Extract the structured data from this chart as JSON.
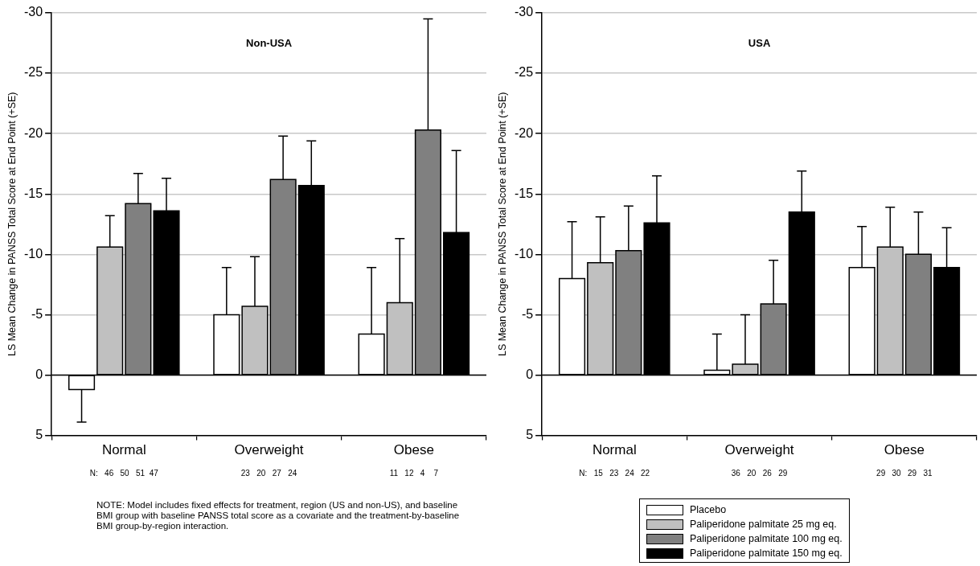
{
  "chart_data": [
    {
      "type": "bar",
      "title": "Non-USA",
      "ylabel": "LS Mean Change in PANSS Total Score at End Point (+SE)",
      "categories": [
        "Normal",
        "Overweight",
        "Obese"
      ],
      "ylim": [
        5,
        -30
      ],
      "yticks": [
        5,
        0,
        -5,
        -10,
        -15,
        -20,
        -25,
        -30
      ],
      "grid": "y",
      "legend": false,
      "series": [
        {
          "color": "#ffffff",
          "values": [
            1.2,
            -5.0,
            -3.4
          ],
          "errors": [
            [
              1.2,
              3.9
            ],
            [
              -8.9,
              -5.0
            ],
            [
              -8.9,
              -3.4
            ]
          ]
        },
        {
          "color": "#c0c0c0",
          "values": [
            -10.6,
            -5.7,
            -6.0
          ],
          "errors": [
            [
              -13.2,
              -10.6
            ],
            [
              -9.8,
              -5.7
            ],
            [
              -11.3,
              -6.0
            ]
          ]
        },
        {
          "color": "#808080",
          "values": [
            -14.2,
            -16.2,
            -20.3
          ],
          "errors": [
            [
              -16.7,
              -14.2
            ],
            [
              -19.8,
              -16.2
            ],
            [
              -29.5,
              -20.3
            ]
          ]
        },
        {
          "color": "#000000",
          "values": [
            -13.6,
            -15.7,
            -11.8
          ],
          "errors": [
            [
              -16.3,
              -13.6
            ],
            [
              -19.4,
              -15.7
            ],
            [
              -18.6,
              -11.8
            ]
          ]
        }
      ],
      "annotations": [
        "N:   46   50   51  47",
        "23   20   27   24",
        "11   12   4    7",
        "NOTE:  Model includes fixed effects for treatment, region (US and non-US), and baseline BMI group with baseline PANSS total score as a covariate and the treatment-by-baseline BMI group-by-region interaction."
      ]
    },
    {
      "type": "bar",
      "title": "USA",
      "ylabel": "LS Mean Change in PANSS Total Score at End Point (+SE)",
      "categories": [
        "Normal",
        "Overweight",
        "Obese"
      ],
      "ylim": [
        5,
        -30
      ],
      "yticks": [
        5,
        0,
        -5,
        -10,
        -15,
        -20,
        -25,
        -30
      ],
      "grid": "y",
      "legend": "bottom",
      "series": [
        {
          "name": "Placebo",
          "color": "#ffffff",
          "values": [
            -8.0,
            -0.4,
            -8.9
          ],
          "errors": [
            [
              -12.7,
              -8.0
            ],
            [
              -3.4,
              -0.4
            ],
            [
              -12.3,
              -8.9
            ]
          ]
        },
        {
          "name": "Paliperidone palmitate 25 mg eq.",
          "color": "#c0c0c0",
          "values": [
            -9.3,
            -0.9,
            -10.6
          ],
          "errors": [
            [
              -13.1,
              -9.3
            ],
            [
              -5.0,
              -0.9
            ],
            [
              -13.9,
              -10.6
            ]
          ]
        },
        {
          "name": "Paliperidone palmitate 100 mg eq.",
          "color": "#808080",
          "values": [
            -10.3,
            -5.9,
            -10.0
          ],
          "errors": [
            [
              -14.0,
              -10.3
            ],
            [
              -9.5,
              -5.9
            ],
            [
              -13.5,
              -10.0
            ]
          ]
        },
        {
          "name": "Paliperidone palmitate 150 mg eq.",
          "color": "#000000",
          "values": [
            -12.6,
            -13.5,
            -8.9
          ],
          "errors": [
            [
              -16.5,
              -12.6
            ],
            [
              -16.9,
              -13.5
            ],
            [
              -12.2,
              -8.9
            ]
          ]
        }
      ],
      "annotations": [
        "N:   15   23   24   22",
        "36   20   26   29",
        "29   30   29   31"
      ]
    }
  ]
}
